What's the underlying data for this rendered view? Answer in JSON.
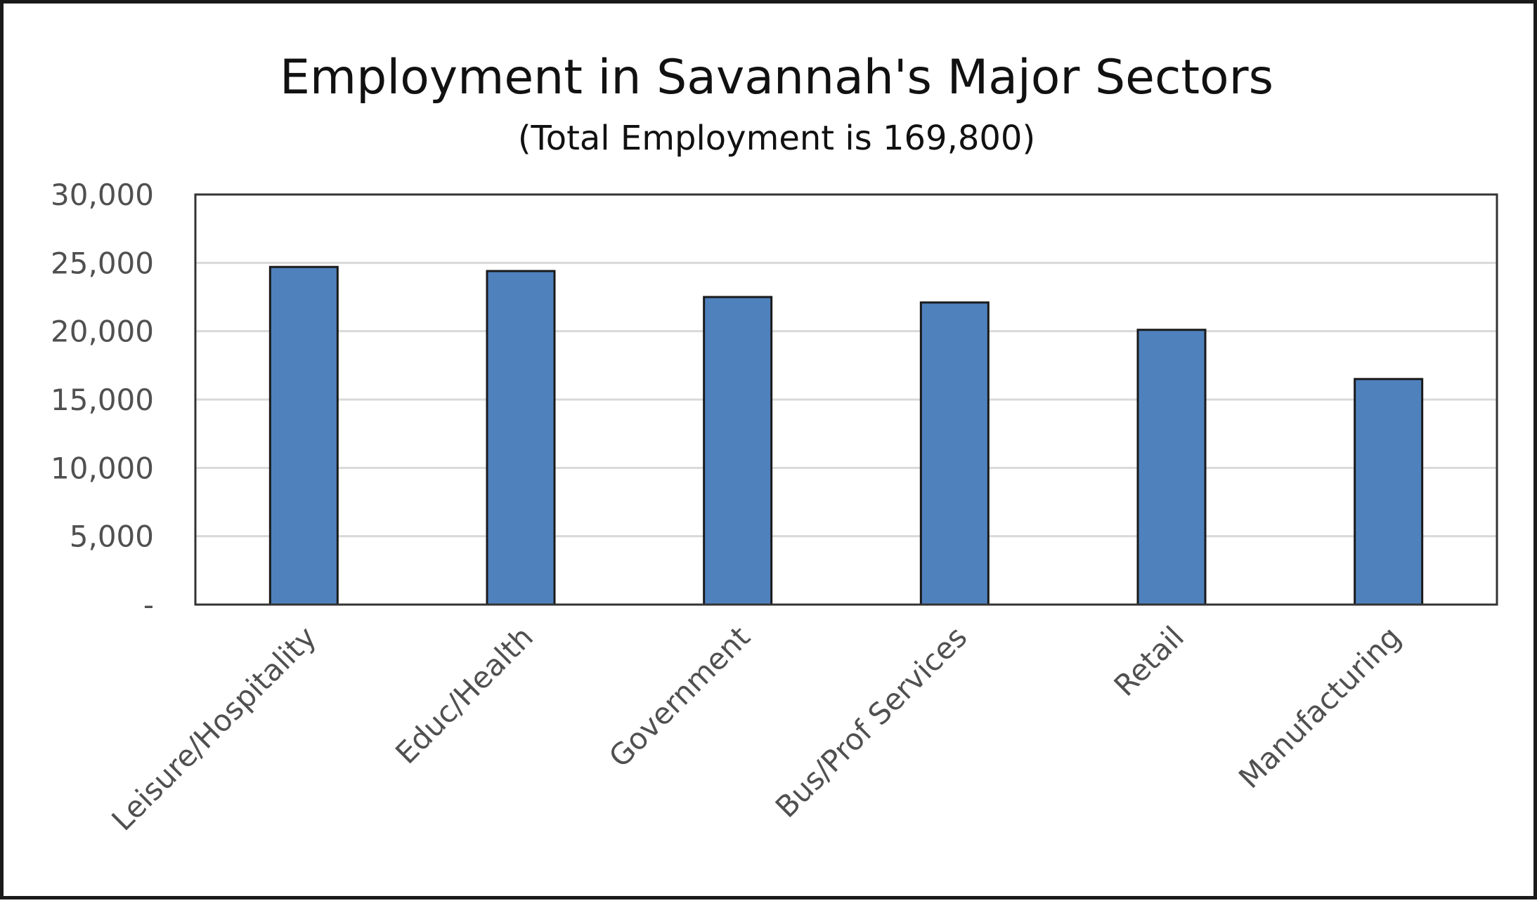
{
  "chart_data": {
    "type": "bar",
    "title": "Employment in Savannah's Major Sectors",
    "subtitle": "(Total Employment is 169,800)",
    "xlabel": "",
    "ylabel": "",
    "categories": [
      "Leisure/Hospitality",
      "Educ/Health",
      "Government",
      "Bus/Prof Services",
      "Retail",
      "Manufacturing"
    ],
    "values": [
      24700,
      24400,
      22500,
      22100,
      20100,
      16500
    ],
    "ylim": [
      0,
      30000
    ],
    "y_ticks": [
      0,
      5000,
      10000,
      15000,
      20000,
      25000,
      30000
    ],
    "y_tick_labels": [
      "-",
      "5,000",
      "10,000",
      "15,000",
      "20,000",
      "25,000",
      "30,000"
    ],
    "grid": true,
    "legend": "none",
    "colors": {
      "bar": "#4f81bd",
      "bar_outline": "#1a1a1a",
      "gridline": "#d9d9d9",
      "tick_label": "#505050",
      "title": "#111111"
    }
  }
}
